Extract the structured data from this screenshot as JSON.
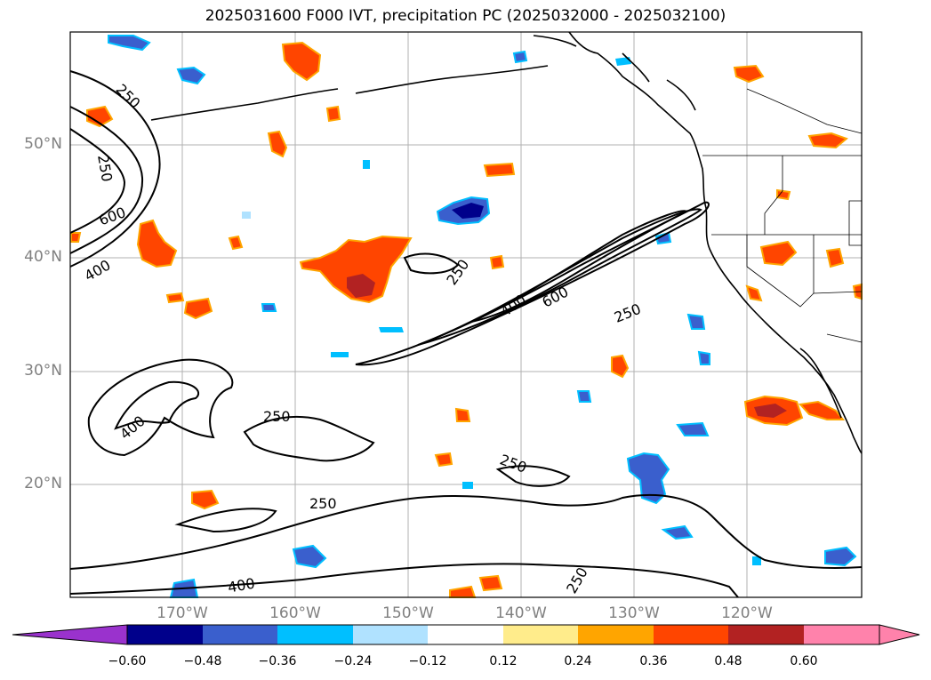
{
  "title": "2025031600 F000 IVT, precipitation PC (2025032000 - 2025032100)",
  "lat_labels": [
    "50°N",
    "40°N",
    "30°N",
    "20°N"
  ],
  "lon_labels": [
    "170°W",
    "160°W",
    "150°W",
    "140°W",
    "130°W",
    "120°W"
  ],
  "contour_labels": [
    "250",
    "250",
    "600",
    "400",
    "250",
    "400",
    "600",
    "250",
    "400",
    "250",
    "250",
    "250",
    "250",
    "400"
  ],
  "colorbar": {
    "ticks": [
      "−0.60",
      "−0.48",
      "−0.36",
      "−0.24",
      "−0.12",
      "0.12",
      "0.24",
      "0.36",
      "0.48",
      "0.60"
    ],
    "colors": [
      "#9a32cd",
      "#00008b",
      "#3a5fcd",
      "#00bfff",
      "#b0e2ff",
      "#ffffff",
      "#ffec8b",
      "#ffa500",
      "#ff4500",
      "#b22222",
      "#ff82ab",
      "#ff82ab"
    ]
  },
  "colors": {
    "contour": "#000000",
    "grid": "#b0b0b0",
    "coast": "#000000"
  }
}
